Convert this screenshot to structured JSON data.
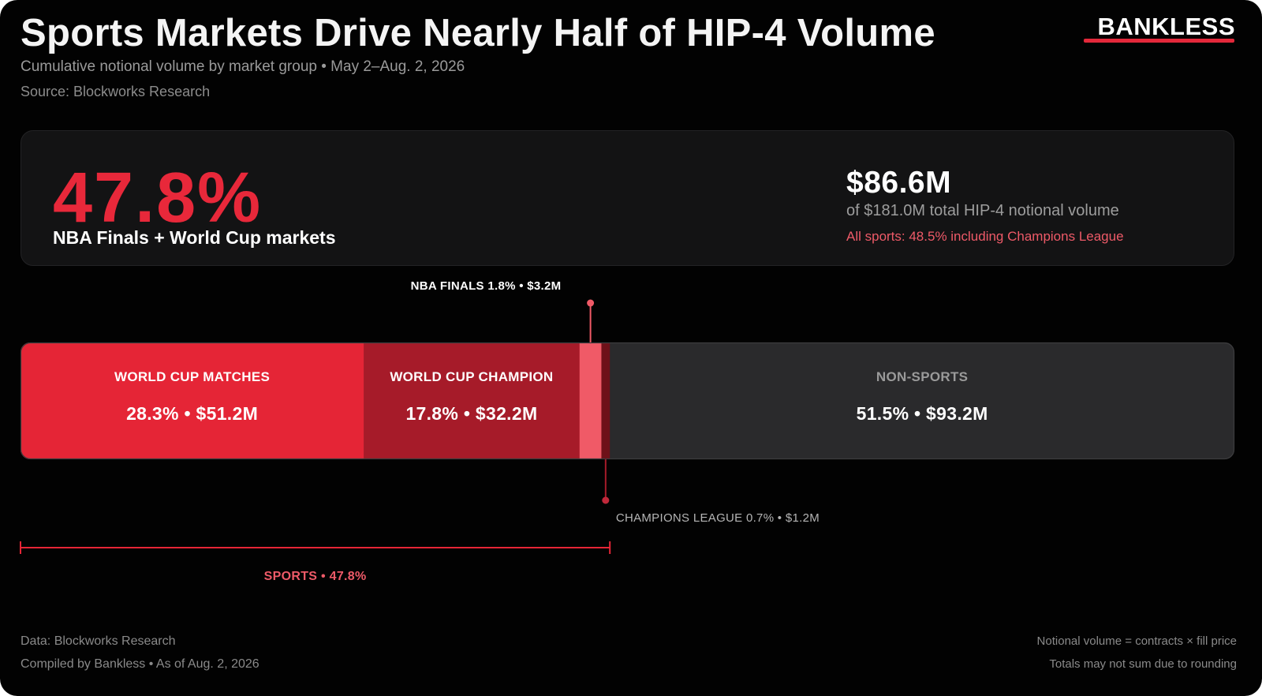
{
  "header": {
    "title": "Sports Markets Drive Nearly Half of HIP-4 Volume",
    "subtitle": "Cumulative notional volume by market group • May 2–Aug. 2, 2026",
    "source": "Source: Blockworks Research",
    "brand": "BANKLESS"
  },
  "summary": {
    "big_pct": "47.8%",
    "big_label": "NBA Finals + World Cup markets",
    "total_value": "$86.6M",
    "total_desc": "of $181.0M total HIP-4 notional volume",
    "total_note": "All sports: 48.5% including Champions League"
  },
  "chart_data": {
    "type": "bar",
    "orientation": "horizontal-stacked-100",
    "segments": [
      {
        "name": "WORLD CUP MATCHES",
        "pct": 28.3,
        "pct_label": "28.3%",
        "value_label": "$51.2M",
        "color": "#e52536"
      },
      {
        "name": "WORLD CUP CHAMPION",
        "pct": 17.8,
        "pct_label": "17.8%",
        "value_label": "$32.2M",
        "color": "#a61b29"
      },
      {
        "name": "NBA FINALS",
        "pct": 1.8,
        "pct_label": "1.8%",
        "value_label": "$3.2M",
        "color": "#f05a67"
      },
      {
        "name": "CHAMPIONS LEAGUE",
        "pct": 0.7,
        "pct_label": "0.7%",
        "value_label": "$1.2M",
        "color": "#6e1119"
      },
      {
        "name": "NON-SPORTS",
        "pct": 51.5,
        "pct_label": "51.5%",
        "value_label": "$93.2M",
        "color": "#2a2a2c"
      }
    ],
    "callouts": {
      "nba": {
        "name": "NBA FINALS",
        "detail": "1.8% • $3.2M"
      },
      "champions": {
        "name": "CHAMPIONS LEAGUE",
        "detail": "0.7% • $1.2M"
      }
    },
    "bracket": {
      "label": "SPORTS • 47.8%"
    },
    "separator": "•"
  },
  "footer": {
    "data_source": "Data: Blockworks Research",
    "compiled": "Compiled by Bankless • As of Aug. 2, 2026",
    "note_1": "Notional volume = contracts × fill price",
    "note_2": "Totals may not sum due to rounding"
  },
  "colors": {
    "accent": "#e52536",
    "accent_dark": "#a61b29",
    "accent_light": "#f05a67",
    "neutral_segment": "#2a2a2c",
    "background": "#020202"
  }
}
